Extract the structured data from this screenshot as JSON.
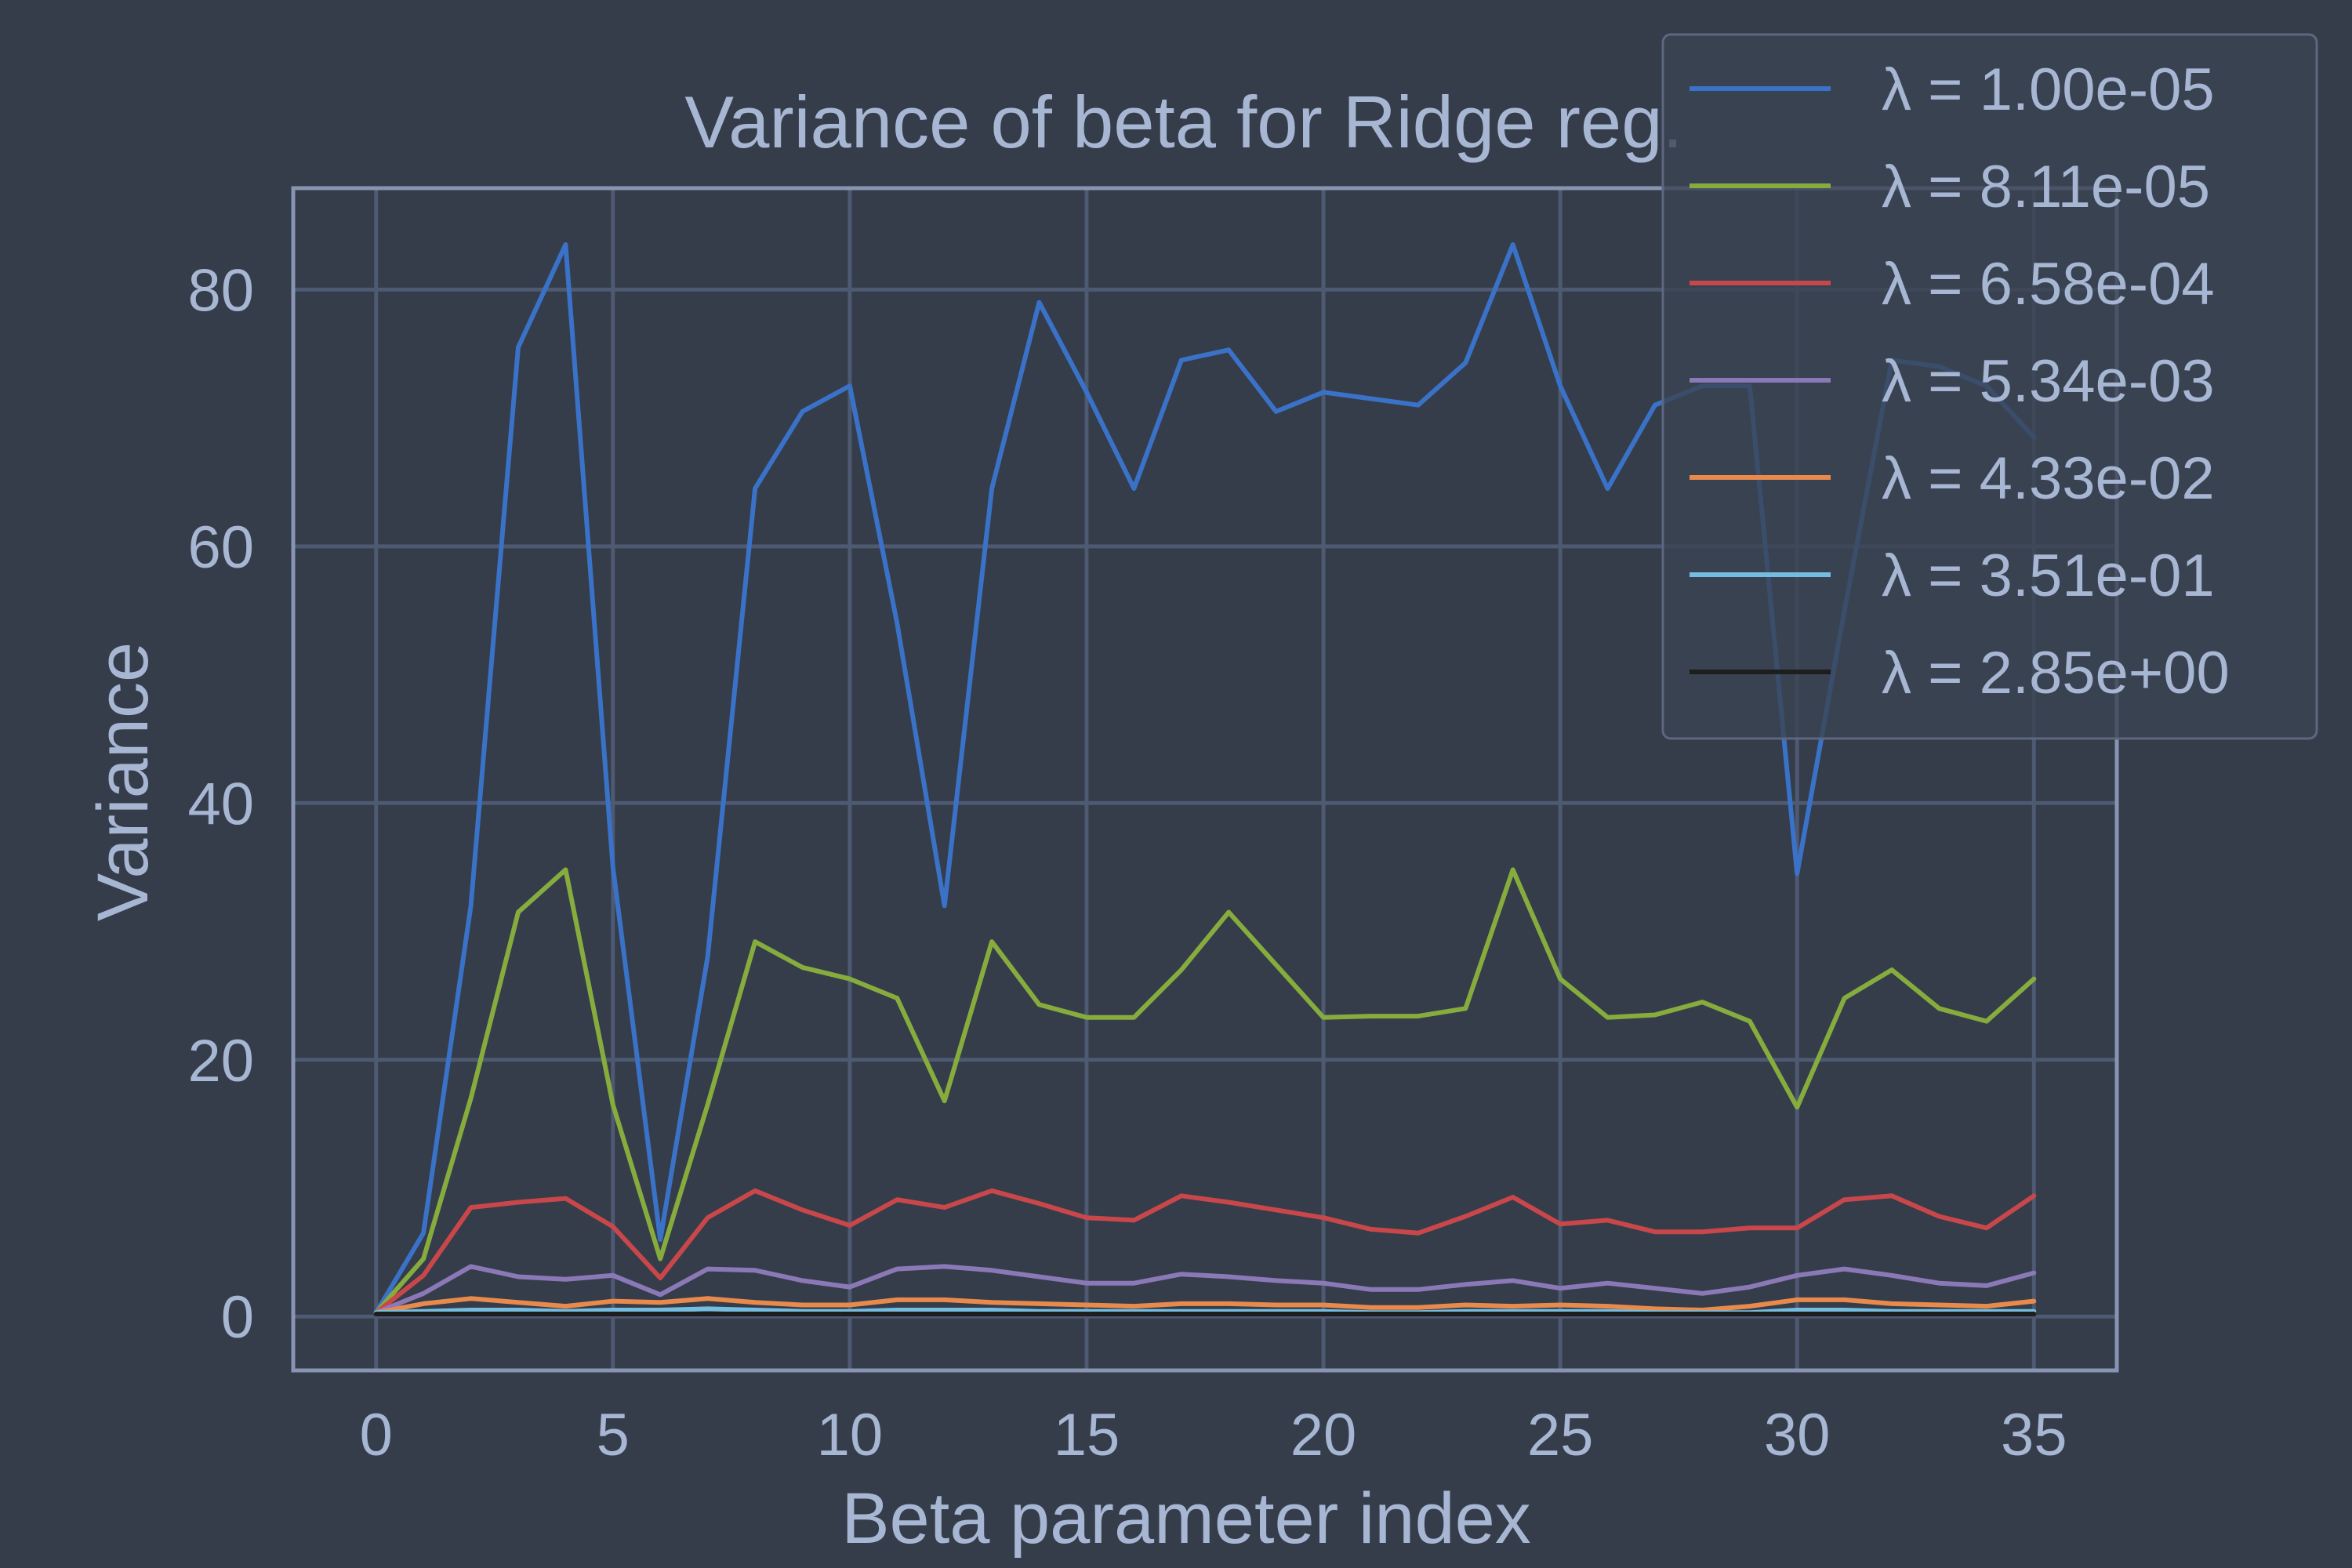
{
  "chart_data": {
    "type": "line",
    "title": "Variance of beta for Ridge reg.",
    "xlabel": "Beta parameter index",
    "ylabel": "Variance",
    "xlim": [
      -1.75,
      36.75
    ],
    "ylim": [
      -4.2,
      87.9
    ],
    "x_ticks": [
      0,
      5,
      10,
      15,
      20,
      25,
      30,
      35
    ],
    "y_ticks": [
      0,
      20,
      40,
      60,
      80
    ],
    "grid": true,
    "legend_position": "top-right",
    "x": [
      0,
      1,
      2,
      3,
      4,
      5,
      6,
      7,
      8,
      9,
      10,
      11,
      12,
      13,
      14,
      15,
      16,
      17,
      18,
      19,
      20,
      21,
      22,
      23,
      24,
      25,
      26,
      27,
      28,
      29,
      30,
      31,
      32,
      33,
      34,
      35
    ],
    "series": [
      {
        "name": "λ = 1.00e-05",
        "color": "#3a72c8",
        "values": [
          0.3,
          6.5,
          32,
          75.5,
          83.5,
          35,
          6,
          28,
          64.5,
          70.5,
          72.5,
          54,
          32,
          64.5,
          79,
          72,
          64.5,
          74.5,
          75.3,
          70.5,
          72,
          71.5,
          71,
          74.3,
          83.5,
          72.5,
          64.5,
          71,
          72.5,
          72.5,
          34.5,
          55,
          74.5,
          74,
          72.5,
          68.5
        ]
      },
      {
        "name": "λ = 8.11e-05",
        "color": "#86ac3e",
        "values": [
          0.3,
          4.5,
          17,
          31.5,
          34.8,
          16.5,
          4.5,
          16.5,
          29.2,
          27.2,
          26.3,
          24.8,
          16.8,
          29.2,
          24.3,
          23.3,
          23.3,
          27,
          31.5,
          27.4,
          23.3,
          23.4,
          23.4,
          24,
          34.8,
          26.3,
          23.3,
          23.5,
          24.5,
          23,
          16.3,
          24.8,
          27,
          24,
          23,
          26.3
        ]
      },
      {
        "name": "λ = 6.58e-04",
        "color": "#c8474a",
        "values": [
          0.3,
          3.2,
          8.5,
          8.9,
          9.2,
          7,
          3,
          7.7,
          9.8,
          8.3,
          7.1,
          9.1,
          8.5,
          9.8,
          8.8,
          7.7,
          7.5,
          9.4,
          8.9,
          8.3,
          7.7,
          6.8,
          6.5,
          7.8,
          9.3,
          7.2,
          7.5,
          6.6,
          6.6,
          6.9,
          6.9,
          9.1,
          9.4,
          7.8,
          6.9,
          9.4
        ]
      },
      {
        "name": "λ = 5.34e-03",
        "color": "#8b79b7",
        "values": [
          0.3,
          1.8,
          3.9,
          3.1,
          2.9,
          3.2,
          1.7,
          3.7,
          3.6,
          2.8,
          2.3,
          3.7,
          3.9,
          3.6,
          3.1,
          2.6,
          2.6,
          3.3,
          3.1,
          2.8,
          2.6,
          2.1,
          2.1,
          2.5,
          2.8,
          2.2,
          2.6,
          2.2,
          1.8,
          2.3,
          3.2,
          3.7,
          3.2,
          2.6,
          2.4,
          3.4
        ]
      },
      {
        "name": "λ = 4.33e-02",
        "color": "#e88a4c",
        "values": [
          0.3,
          1,
          1.4,
          1.1,
          0.8,
          1.2,
          1.1,
          1.4,
          1.1,
          0.9,
          0.9,
          1.3,
          1.3,
          1.1,
          1,
          0.9,
          0.8,
          1,
          1,
          0.9,
          0.9,
          0.7,
          0.7,
          0.9,
          0.8,
          0.9,
          0.8,
          0.6,
          0.5,
          0.8,
          1.3,
          1.3,
          1,
          0.9,
          0.8,
          1.2
        ]
      },
      {
        "name": "λ = 3.51e-01",
        "color": "#74bde0",
        "values": [
          0.3,
          0.4,
          0.5,
          0.5,
          0.4,
          0.5,
          0.5,
          0.6,
          0.5,
          0.4,
          0.4,
          0.5,
          0.5,
          0.5,
          0.4,
          0.4,
          0.4,
          0.4,
          0.4,
          0.4,
          0.4,
          0.3,
          0.3,
          0.4,
          0.4,
          0.4,
          0.4,
          0.3,
          0.3,
          0.3,
          0.5,
          0.5,
          0.4,
          0.4,
          0.4,
          0.4
        ]
      },
      {
        "name": "λ = 2.85e+00",
        "color": "#1e1e1e",
        "values": [
          0.2,
          0.2,
          0.2,
          0.2,
          0.2,
          0.2,
          0.2,
          0.2,
          0.2,
          0.2,
          0.2,
          0.2,
          0.2,
          0.2,
          0.2,
          0.2,
          0.2,
          0.2,
          0.2,
          0.2,
          0.2,
          0.2,
          0.2,
          0.2,
          0.2,
          0.2,
          0.2,
          0.2,
          0.2,
          0.2,
          0.2,
          0.2,
          0.2,
          0.2,
          0.2,
          0.2
        ]
      }
    ]
  }
}
